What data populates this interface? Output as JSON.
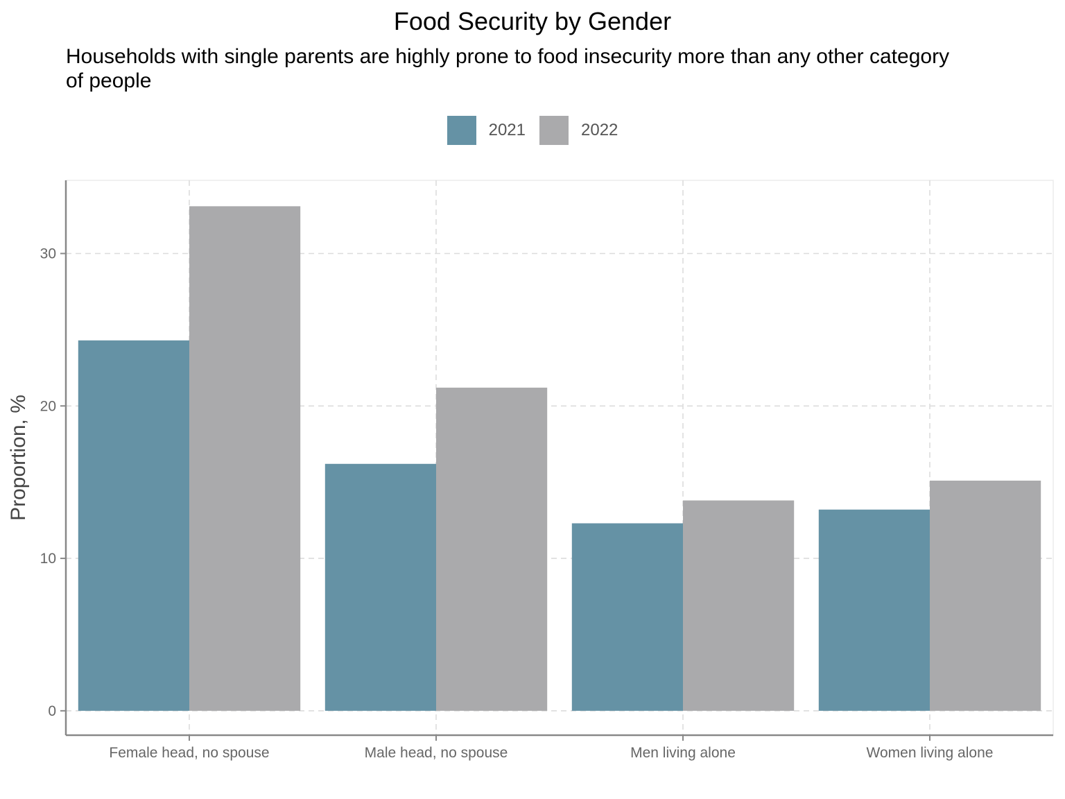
{
  "chart_data": {
    "type": "bar",
    "title": "Food Security by Gender",
    "subtitle": "Households with single parents are highly prone to food insecurity more than any other category of people",
    "xlabel": "",
    "ylabel": "Proportion, %",
    "categories": [
      "Female head, no spouse",
      "Male head, no spouse",
      "Men living alone",
      "Women living alone"
    ],
    "series": [
      {
        "name": "2021",
        "color": "#6592a5",
        "values": [
          24.3,
          16.2,
          12.3,
          13.2
        ]
      },
      {
        "name": "2022",
        "color": "#aaaaac",
        "values": [
          33.1,
          21.2,
          13.8,
          15.1
        ]
      }
    ],
    "ylim": [
      -1.6,
      34.8
    ],
    "yticks": [
      0,
      10,
      20,
      30
    ],
    "grid": true,
    "legend_position": "top"
  }
}
